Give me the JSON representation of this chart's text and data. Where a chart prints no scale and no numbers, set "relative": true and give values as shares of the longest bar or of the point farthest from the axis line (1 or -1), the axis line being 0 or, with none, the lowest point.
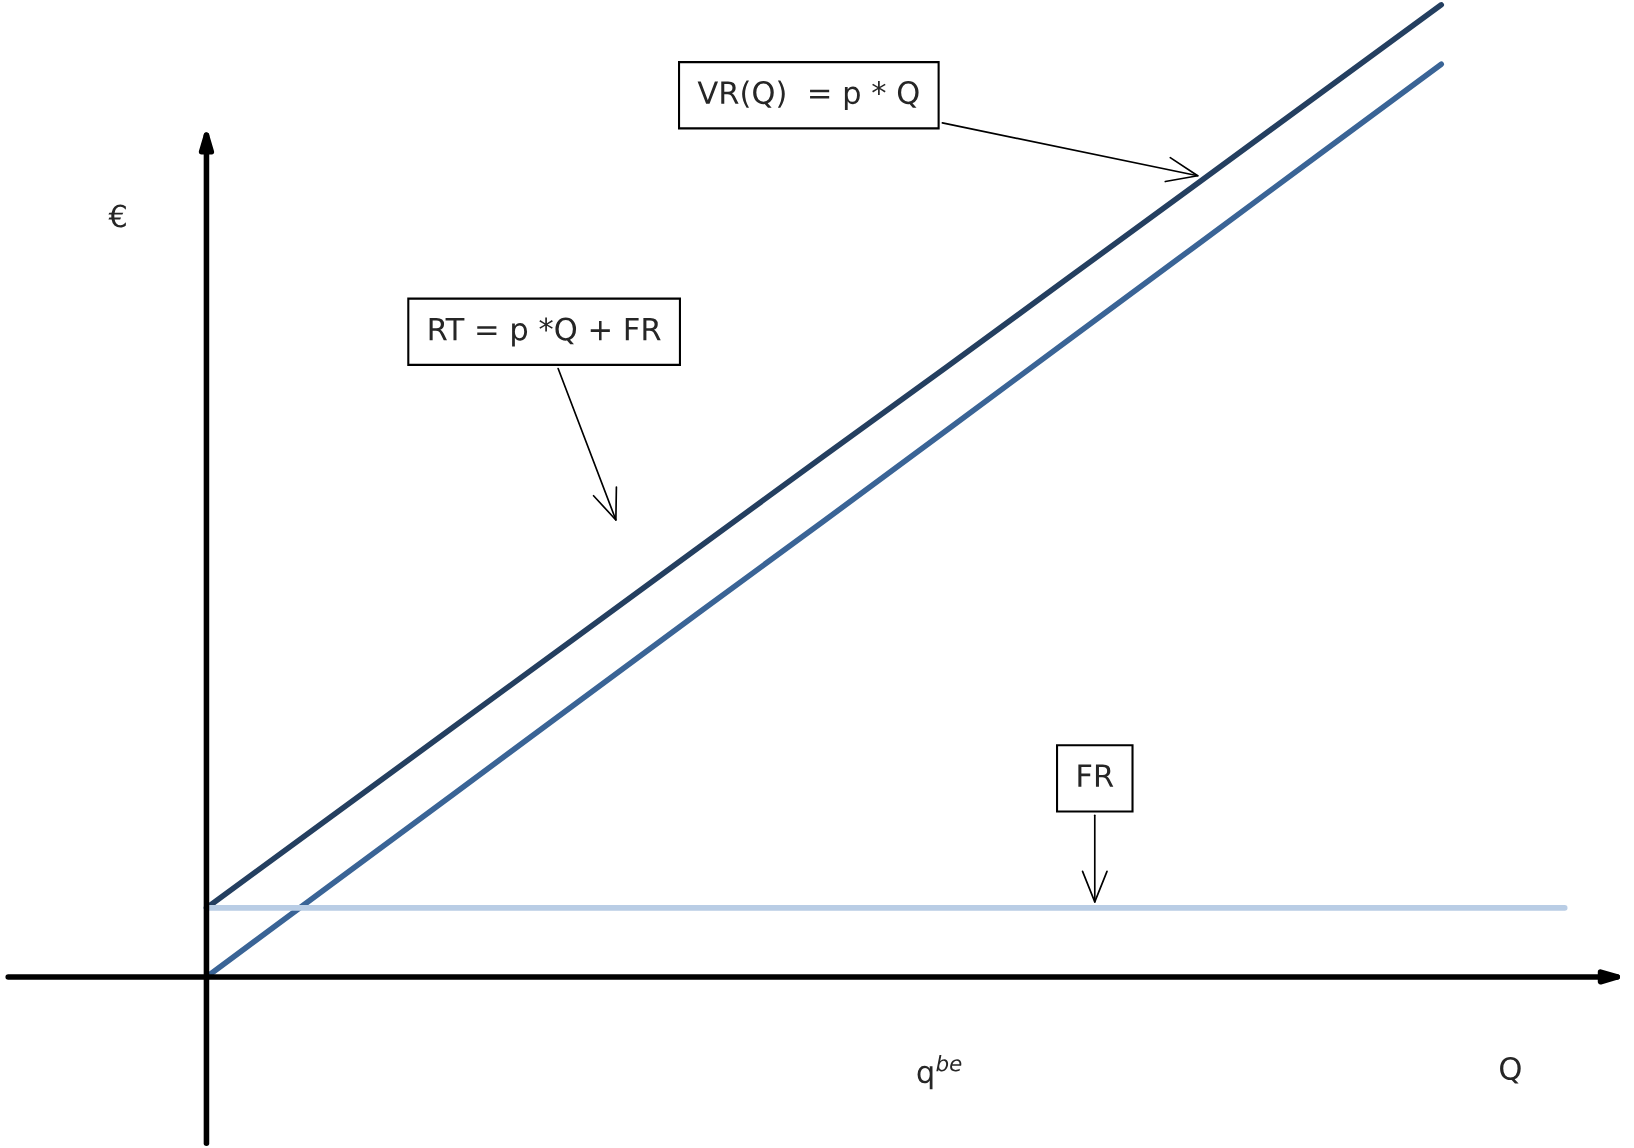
{
  "chart_data": {
    "type": "line",
    "relative": true,
    "ylabel": "€",
    "xlabel": "Q",
    "tick_labels": false,
    "legend": false,
    "marker": "none",
    "line_style": "solid",
    "categories": [
      null,
      null,
      null,
      null,
      null,
      null,
      null,
      null,
      null,
      null,
      null,
      null
    ],
    "series": [
      {
        "color": "#243f60",
        "values": [
          0.071,
          0.164,
          0.257,
          0.35,
          0.443,
          0.536,
          0.628,
          0.721,
          0.814,
          0.907,
          1.0,
          null
        ]
      },
      {
        "color": "#3a6496",
        "values": [
          0,
          0.094,
          0.188,
          0.282,
          0.376,
          0.469,
          0.563,
          0.657,
          0.751,
          0.845,
          0.939,
          null
        ]
      },
      {
        "color": "#b9cde5",
        "values": [
          0.071,
          0.071,
          0.071,
          0.071,
          0.071,
          0.071,
          0.071,
          0.071,
          0.071,
          0.071,
          0.071,
          0.071
        ]
      }
    ],
    "annotations": [
      "VR(Q)  = p * Q",
      "RT = p *Q + FR",
      "FR",
      "q$^{be}$"
    ]
  }
}
